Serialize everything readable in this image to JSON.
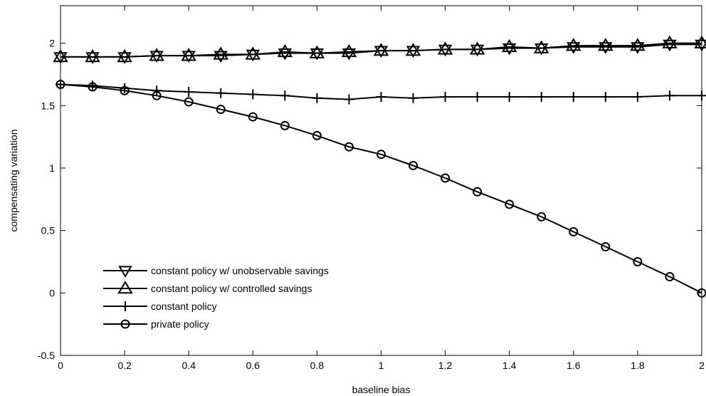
{
  "chart_data": {
    "type": "line",
    "title": "",
    "xlabel": "baseline bias",
    "ylabel": "compensating variation",
    "xlim": [
      0,
      2
    ],
    "ylim": [
      -0.5,
      2.3
    ],
    "xticks": [
      0,
      0.2,
      0.4,
      0.6,
      0.8,
      1,
      1.2,
      1.4,
      1.6,
      1.8,
      2
    ],
    "xtick_labels": [
      "0",
      "0.2",
      "0.4",
      "0.6",
      "0.8",
      "1",
      "1.2",
      "1.4",
      "1.6",
      "1.8",
      "2"
    ],
    "yticks": [
      -0.5,
      0,
      0.5,
      1,
      1.5,
      2
    ],
    "ytick_labels": [
      "-0.5",
      "0",
      "0.5",
      "1",
      "1.5",
      "2"
    ],
    "grid": false,
    "legend_position": "bottom-left",
    "x": [
      0,
      0.1,
      0.2,
      0.3,
      0.4,
      0.5,
      0.6,
      0.7,
      0.8,
      0.9,
      1.0,
      1.1,
      1.2,
      1.3,
      1.4,
      1.5,
      1.6,
      1.7,
      1.8,
      1.9,
      2.0
    ],
    "series": [
      {
        "name": "constant policy w/ unobservable savings",
        "marker": "triangle-down",
        "color": "#000000",
        "values": [
          1.89,
          1.89,
          1.89,
          1.9,
          1.9,
          1.9,
          1.91,
          1.92,
          1.92,
          1.92,
          1.94,
          1.94,
          1.95,
          1.95,
          1.96,
          1.96,
          1.97,
          1.97,
          1.97,
          1.99,
          1.99
        ]
      },
      {
        "name": "constant policy w/ controlled savings",
        "marker": "triangle-up",
        "color": "#000000",
        "values": [
          1.89,
          1.89,
          1.89,
          1.9,
          1.9,
          1.91,
          1.91,
          1.93,
          1.92,
          1.93,
          1.94,
          1.94,
          1.95,
          1.95,
          1.97,
          1.96,
          1.98,
          1.98,
          1.98,
          2.0,
          2.0
        ]
      },
      {
        "name": "constant policy",
        "marker": "plus",
        "color": "#000000",
        "values": [
          1.67,
          1.66,
          1.64,
          1.62,
          1.61,
          1.6,
          1.59,
          1.58,
          1.56,
          1.55,
          1.57,
          1.56,
          1.57,
          1.57,
          1.57,
          1.57,
          1.57,
          1.57,
          1.57,
          1.58,
          1.58
        ]
      },
      {
        "name": "private policy",
        "marker": "circle",
        "color": "#000000",
        "values": [
          1.67,
          1.65,
          1.62,
          1.58,
          1.53,
          1.47,
          1.41,
          1.34,
          1.26,
          1.17,
          1.11,
          1.02,
          0.92,
          0.81,
          0.71,
          0.61,
          0.49,
          0.37,
          0.25,
          0.13,
          0.0
        ]
      }
    ]
  }
}
